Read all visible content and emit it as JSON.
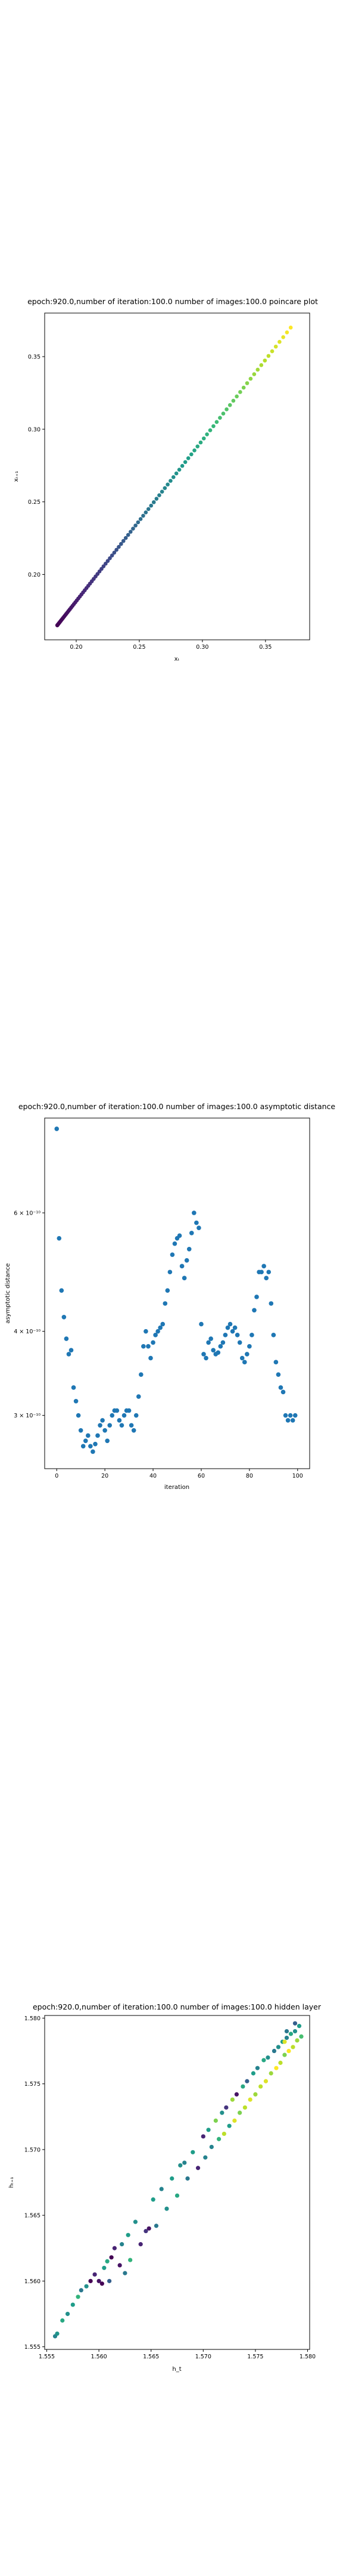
{
  "chart_data": [
    {
      "type": "scatter",
      "title": "epoch:920.0,number of iteration:100.0 number of images:100.0 poincare plot",
      "xlabel": "xₜ",
      "ylabel": "xₜ₊₁",
      "xlim": [
        0.175,
        0.385
      ],
      "ylim": [
        0.155,
        0.38
      ],
      "x_ticks": [
        0.2,
        0.25,
        0.3,
        0.35
      ],
      "x_tick_labels": [
        "0.20",
        "0.25",
        "0.30",
        "0.35"
      ],
      "y_ticks": [
        0.2,
        0.25,
        0.3,
        0.35
      ],
      "y_tick_labels": [
        "0.20",
        "0.25",
        "0.30",
        "0.35"
      ],
      "grid": false,
      "colormap": "viridis",
      "trend": {
        "x_start": 0.185,
        "x_end": 0.37,
        "y_start": 0.165,
        "y_end": 0.37,
        "points": 100
      }
    },
    {
      "type": "scatter",
      "title": "epoch:920.0,number of iteration:100.0  number of images:100.0 asymptotic distance",
      "xlabel": "iteration",
      "ylabel": "asymptotic distance",
      "log_y": true,
      "xlim": [
        -5,
        105
      ],
      "ylim": [
        2.5e-10,
        8.3e-10
      ],
      "x_ticks": [
        0,
        20,
        40,
        60,
        80,
        100
      ],
      "x_tick_labels": [
        "0",
        "20",
        "40",
        "60",
        "80",
        "100"
      ],
      "y_ticks": [
        3e-10,
        4e-10,
        6e-10
      ],
      "y_tick_labels": [
        "3 × 10⁻¹⁰",
        "4 × 10⁻¹⁰",
        "6 × 10⁻¹⁰"
      ],
      "grid": false,
      "color": "#1f77b4",
      "x": [
        0,
        1,
        2,
        3,
        4,
        5,
        6,
        7,
        8,
        9,
        10,
        11,
        12,
        13,
        14,
        15,
        16,
        17,
        18,
        19,
        20,
        21,
        22,
        23,
        24,
        25,
        26,
        27,
        28,
        29,
        30,
        31,
        32,
        33,
        34,
        35,
        36,
        37,
        38,
        39,
        40,
        41,
        42,
        43,
        44,
        45,
        46,
        47,
        48,
        49,
        50,
        51,
        52,
        53,
        54,
        55,
        56,
        57,
        58,
        59,
        60,
        61,
        62,
        63,
        64,
        65,
        66,
        67,
        68,
        69,
        70,
        71,
        72,
        73,
        74,
        75,
        76,
        77,
        78,
        79,
        80,
        81,
        82,
        83,
        84,
        85,
        86,
        87,
        88,
        89,
        90,
        91,
        92,
        93,
        94,
        95,
        96,
        97,
        98,
        99
      ],
      "y": [
        8e-10,
        5.5e-10,
        4.6e-10,
        4.2e-10,
        3.9e-10,
        3.7e-10,
        3.75e-10,
        3.3e-10,
        3.15e-10,
        3e-10,
        2.85e-10,
        2.7e-10,
        2.75e-10,
        2.8e-10,
        2.7e-10,
        2.65e-10,
        2.72e-10,
        2.8e-10,
        2.9e-10,
        2.95e-10,
        2.85e-10,
        2.75e-10,
        2.9e-10,
        3e-10,
        3.05e-10,
        3.05e-10,
        2.95e-10,
        2.9e-10,
        3e-10,
        3.05e-10,
        3.05e-10,
        2.9e-10,
        2.85e-10,
        3e-10,
        3.2e-10,
        3.45e-10,
        3.8e-10,
        4e-10,
        3.8e-10,
        3.65e-10,
        3.85e-10,
        3.95e-10,
        4e-10,
        4.05e-10,
        4.1e-10,
        4.4e-10,
        4.6e-10,
        4.9e-10,
        5.2e-10,
        5.4e-10,
        5.5e-10,
        5.55e-10,
        5e-10,
        4.8e-10,
        5.1e-10,
        5.3e-10,
        5.6e-10,
        6e-10,
        5.8e-10,
        5.7e-10,
        4.1e-10,
        3.7e-10,
        3.65e-10,
        3.85e-10,
        3.9e-10,
        3.75e-10,
        3.7e-10,
        3.72e-10,
        3.8e-10,
        3.85e-10,
        3.95e-10,
        4.05e-10,
        4.1e-10,
        4e-10,
        4.05e-10,
        3.95e-10,
        3.85e-10,
        3.65e-10,
        3.6e-10,
        3.7e-10,
        3.8e-10,
        3.95e-10,
        4.3e-10,
        4.5e-10,
        4.9e-10,
        4.9e-10,
        5e-10,
        4.8e-10,
        4.9e-10,
        4.4e-10,
        3.95e-10,
        3.6e-10,
        3.45e-10,
        3.3e-10,
        3.25e-10,
        3e-10,
        2.95e-10,
        3e-10,
        2.95e-10,
        3e-10
      ]
    },
    {
      "type": "scatter",
      "title": "epoch:920.0,number of iteration:100.0  number of images:100.0 hidden layer",
      "xlabel": "h_t",
      "ylabel": "hₜ₊₁",
      "xlim": [
        1.5548,
        1.5802
      ],
      "ylim": [
        1.5548,
        1.5802
      ],
      "x_ticks": [
        1.555,
        1.56,
        1.565,
        1.57,
        1.575,
        1.58
      ],
      "x_tick_labels": [
        "1.555",
        "1.560",
        "1.565",
        "1.570",
        "1.575",
        "1.580"
      ],
      "y_ticks": [
        1.555,
        1.56,
        1.565,
        1.57,
        1.575,
        1.58
      ],
      "y_tick_labels": [
        "1.555",
        "1.560",
        "1.565",
        "1.570",
        "1.575",
        "1.580"
      ],
      "grid": false,
      "colormap": "viridis",
      "points": [
        [
          1.5558,
          1.5558,
          0.45
        ],
        [
          1.556,
          1.556,
          0.52
        ],
        [
          1.5565,
          1.557,
          0.6
        ],
        [
          1.557,
          1.5575,
          0.5
        ],
        [
          1.5575,
          1.5582,
          0.55
        ],
        [
          1.558,
          1.5588,
          0.65
        ],
        [
          1.5583,
          1.5593,
          0.4
        ],
        [
          1.5588,
          1.5596,
          0.5
        ],
        [
          1.5592,
          1.56,
          0.0
        ],
        [
          1.5596,
          1.5605,
          0.1
        ],
        [
          1.56,
          1.56,
          0.05
        ],
        [
          1.5603,
          1.5598,
          0.0
        ],
        [
          1.5605,
          1.561,
          0.55
        ],
        [
          1.5608,
          1.5615,
          0.6
        ],
        [
          1.561,
          1.56,
          0.3
        ],
        [
          1.5612,
          1.5618,
          0.0
        ],
        [
          1.5615,
          1.5625,
          0.1
        ],
        [
          1.562,
          1.5612,
          0.05
        ],
        [
          1.5622,
          1.5628,
          0.45
        ],
        [
          1.5625,
          1.5606,
          0.4
        ],
        [
          1.5628,
          1.5635,
          0.55
        ],
        [
          1.563,
          1.5616,
          0.65
        ],
        [
          1.5635,
          1.5645,
          0.5
        ],
        [
          1.564,
          1.5628,
          0.1
        ],
        [
          1.5645,
          1.5638,
          0.15
        ],
        [
          1.5648,
          1.564,
          0.05
        ],
        [
          1.5652,
          1.5662,
          0.55
        ],
        [
          1.5655,
          1.5642,
          0.4
        ],
        [
          1.566,
          1.567,
          0.45
        ],
        [
          1.5665,
          1.5655,
          0.5
        ],
        [
          1.567,
          1.5678,
          0.55
        ],
        [
          1.5675,
          1.5665,
          0.6
        ],
        [
          1.5678,
          1.5688,
          0.5
        ],
        [
          1.5682,
          1.569,
          0.45
        ],
        [
          1.5685,
          1.5678,
          0.4
        ],
        [
          1.569,
          1.5698,
          0.55
        ],
        [
          1.5695,
          1.5686,
          0.1
        ],
        [
          1.57,
          1.571,
          0.1
        ],
        [
          1.5702,
          1.5694,
          0.45
        ],
        [
          1.5705,
          1.5715,
          0.55
        ],
        [
          1.5708,
          1.5702,
          0.45
        ],
        [
          1.5712,
          1.5722,
          0.8
        ],
        [
          1.5715,
          1.5708,
          0.65
        ],
        [
          1.5718,
          1.5728,
          0.5
        ],
        [
          1.572,
          1.5712,
          0.9
        ],
        [
          1.5722,
          1.5732,
          0.15
        ],
        [
          1.5725,
          1.5718,
          0.55
        ],
        [
          1.5728,
          1.5738,
          0.85
        ],
        [
          1.573,
          1.5722,
          0.95
        ],
        [
          1.5732,
          1.5742,
          0.05
        ],
        [
          1.5735,
          1.5728,
          0.8
        ],
        [
          1.5738,
          1.5748,
          0.6
        ],
        [
          1.574,
          1.5732,
          0.9
        ],
        [
          1.5742,
          1.5752,
          0.3
        ],
        [
          1.5745,
          1.5738,
          0.95
        ],
        [
          1.5748,
          1.5758,
          0.55
        ],
        [
          1.575,
          1.5742,
          0.85
        ],
        [
          1.5752,
          1.5762,
          0.45
        ],
        [
          1.5755,
          1.5748,
          0.9
        ],
        [
          1.5758,
          1.5768,
          0.6
        ],
        [
          1.576,
          1.5752,
          0.95
        ],
        [
          1.5762,
          1.577,
          0.5
        ],
        [
          1.5765,
          1.5758,
          0.85
        ],
        [
          1.5768,
          1.5775,
          0.4
        ],
        [
          1.577,
          1.5762,
          1.0
        ],
        [
          1.5772,
          1.5778,
          0.5
        ],
        [
          1.5774,
          1.5766,
          0.9
        ],
        [
          1.5776,
          1.5782,
          0.55
        ],
        [
          1.5778,
          1.5772,
          0.8
        ],
        [
          1.578,
          1.5785,
          0.45
        ],
        [
          1.5782,
          1.5775,
          1.0
        ],
        [
          1.5784,
          1.5788,
          0.6
        ],
        [
          1.5786,
          1.5778,
          0.9
        ],
        [
          1.5788,
          1.579,
          0.5
        ],
        [
          1.579,
          1.5783,
          0.85
        ],
        [
          1.5792,
          1.5794,
          0.55
        ],
        [
          1.5794,
          1.5786,
          0.7
        ],
        [
          1.578,
          1.579,
          0.4
        ],
        [
          1.5778,
          1.5782,
          0.95
        ],
        [
          1.5788,
          1.5796,
          0.3
        ]
      ]
    }
  ]
}
